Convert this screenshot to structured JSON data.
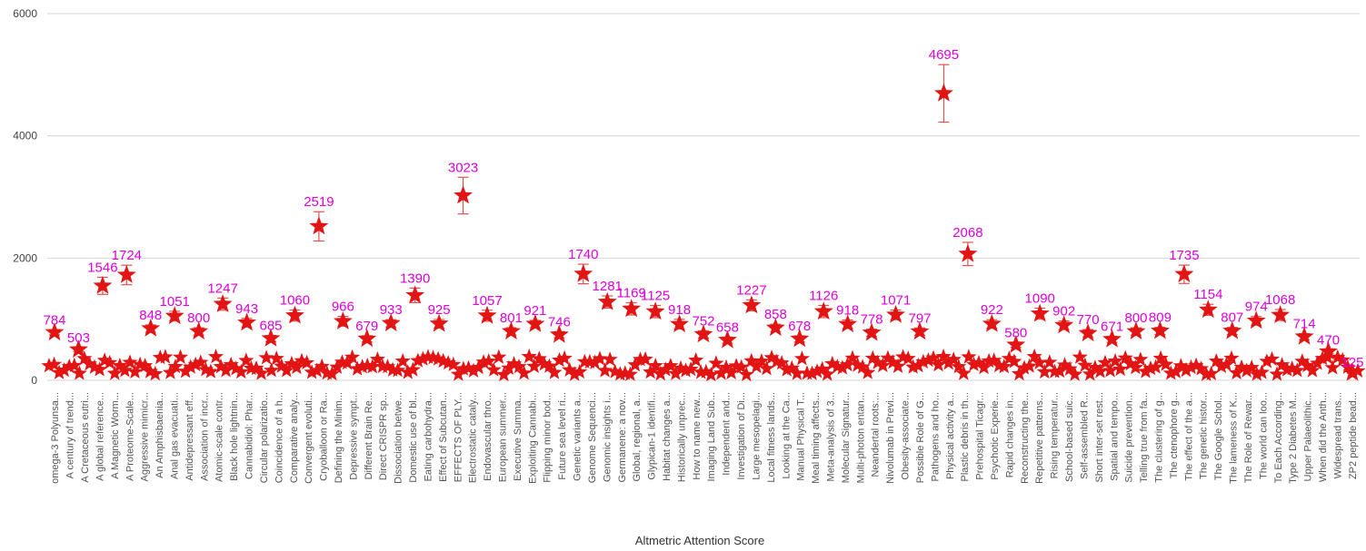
{
  "chart_data": {
    "type": "scatter",
    "marker": "star",
    "error_bars": true,
    "title": "",
    "xlabel": "Altmetric Attention Score",
    "ylabel": "",
    "ylim": [
      0,
      6000
    ],
    "yticks": [
      0,
      2000,
      4000,
      6000
    ],
    "grid": "horizontal",
    "colors": {
      "marker": "#e31414",
      "error_bar": "#e65050",
      "data_label": "#e000d8",
      "grid": "#d6d6d6"
    },
    "categories": [
      "omega-3 Polyunsa...",
      "A century of trend...",
      "A Cretaceous eutri...",
      "A global reference...",
      "A Magnetic Worm...",
      "A Proteome-Scale...",
      "Aggressive mimicr...",
      "An Amphisbaenia...",
      "Anal gas evacuati...",
      "Antidepressant eff...",
      "Association of incr...",
      "Atomic-scale contr...",
      "Black hole lightnin...",
      "Cannabidiol: Phar...",
      "Circular polarizatio...",
      "Coincidence of a h...",
      "Comparative analy...",
      "Convergent evoluti...",
      "Cryoballoon or Ra...",
      "Defining the Minim...",
      "Depressive sympt...",
      "Different Brain Re...",
      "Direct CRISPR sp...",
      "Dissociation betwe...",
      "Domestic use of bl...",
      "Eating carbohydra...",
      "Effect of Subcutan...",
      "EFFECTS OF PLY...",
      "Electrostatic cataly...",
      "Endovascular thro...",
      "European summer...",
      "Executive Summa...",
      "Exploiting Cannabi...",
      "Flipping minor bod...",
      "Future sea level ri...",
      "Genetic variants a...",
      "Genome Sequenci...",
      "Genomic insights i...",
      "Germanene: a nov...",
      "Global, regional, a...",
      "Glypican-1 identifi...",
      "Habitat changes a...",
      "Historically unprec...",
      "How to name new...",
      "Imaging Land Sub...",
      "Independent and...",
      "Investigation of Di...",
      "Large mesopelagi...",
      "Local fitness lands...",
      "Looking at the Ca...",
      "Manual Physical T...",
      "Meal timing affects...",
      "Meta-analysis of 3...",
      "Molecular Signatur...",
      "Multi-photon entan...",
      "Neandertal roots:...",
      "Nivolumab in Previ...",
      "Obesity-associate...",
      "Possible Role of G...",
      "Pathogens and ho...",
      "Physical activity a...",
      "Plastic debris in th...",
      "Prehospital Ticagr...",
      "Psychotic Experie...",
      "Rapid changes in...",
      "Reconstructing the...",
      "Repetitive patterns...",
      "Rising temperatur...",
      "School-based suic...",
      "Self-assembled R...",
      "Short inter-set rest...",
      "Spatial and tempo...",
      "Suicide prevention...",
      "Telling true from fa...",
      "The clustering of g...",
      "The ctenophore g...",
      "The effect of the a...",
      "The genetic histor...",
      "The Google Schol...",
      "The lameness of K...",
      "The Role of Rewar...",
      "The world can loo...",
      "To Each According...",
      "Type 2 Diabetes M...",
      "Upper Palaeolithic...",
      "When did the Anth...",
      "Widespread trans...",
      "ZP2 peptide bead..."
    ],
    "labeled_points": [
      {
        "value": 784,
        "err": 40
      },
      {
        "value": 503,
        "err": 30
      },
      {
        "value": 1546,
        "err": 140
      },
      {
        "value": 1724,
        "err": 160
      },
      {
        "value": 848,
        "err": 60
      },
      {
        "value": 1051,
        "err": 80
      },
      {
        "value": 800,
        "err": 60
      },
      {
        "value": 1247,
        "err": 100
      },
      {
        "value": 943,
        "err": 70
      },
      {
        "value": 685,
        "err": 50
      },
      {
        "value": 1060,
        "err": 90
      },
      {
        "value": 2519,
        "err": 240
      },
      {
        "value": 966,
        "err": 80
      },
      {
        "value": 679,
        "err": 50
      },
      {
        "value": 933,
        "err": 60
      },
      {
        "value": 1390,
        "err": 120
      },
      {
        "value": 925,
        "err": 70
      },
      {
        "value": 3023,
        "err": 300
      },
      {
        "value": 1057,
        "err": 90
      },
      {
        "value": 801,
        "err": 60
      },
      {
        "value": 921,
        "err": 60
      },
      {
        "value": 746,
        "err": 50
      },
      {
        "value": 1740,
        "err": 160
      },
      {
        "value": 1281,
        "err": 100
      },
      {
        "value": 1169,
        "err": 100
      },
      {
        "value": 1125,
        "err": 100
      },
      {
        "value": 918,
        "err": 80
      },
      {
        "value": 752,
        "err": 60
      },
      {
        "value": 658,
        "err": 50
      },
      {
        "value": 1227,
        "err": 90
      },
      {
        "value": 858,
        "err": 60
      },
      {
        "value": 678,
        "err": 50
      },
      {
        "value": 1126,
        "err": 100
      },
      {
        "value": 918,
        "err": 70
      },
      {
        "value": 778,
        "err": 60
      },
      {
        "value": 1071,
        "err": 80
      },
      {
        "value": 797,
        "err": 60
      },
      {
        "value": 4695,
        "err": 470
      },
      {
        "value": 2068,
        "err": 190
      },
      {
        "value": 922,
        "err": 70
      },
      {
        "value": 580,
        "err": 40
      },
      {
        "value": 1090,
        "err": 90
      },
      {
        "value": 902,
        "err": 70
      },
      {
        "value": 770,
        "err": 60
      },
      {
        "value": 671,
        "err": 50
      },
      {
        "value": 800,
        "err": 60
      },
      {
        "value": 809,
        "err": 60
      },
      {
        "value": 1735,
        "err": 150
      },
      {
        "value": 1154,
        "err": 90
      },
      {
        "value": 807,
        "err": 60
      },
      {
        "value": 974,
        "err": 70
      },
      {
        "value": 1068,
        "err": 90
      },
      {
        "value": 714,
        "err": 50
      },
      {
        "value": 470,
        "err": 30
      },
      {
        "value": 125,
        "err": 10
      }
    ]
  }
}
